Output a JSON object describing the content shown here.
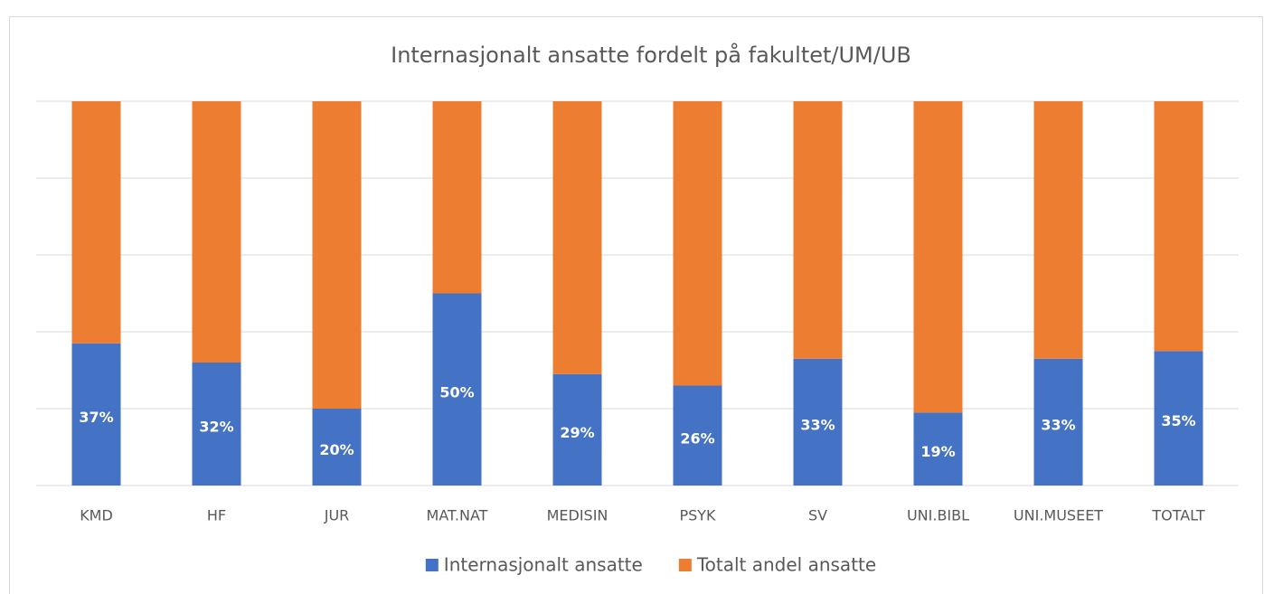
{
  "chart_data": {
    "type": "stacked_bar",
    "title": "Internasjonalt ansatte fordelt på fakultet/UM/UB",
    "categories": [
      "KMD",
      "HF",
      "JUR",
      "MAT.NAT",
      "MEDISIN",
      "PSYK",
      "SV",
      "UNI.BIBL",
      "UNI.MUSEET",
      "TOTALT"
    ],
    "series": [
      {
        "name": "Internasjonalt ansatte",
        "color": "#4472c4",
        "values": [
          37,
          32,
          20,
          50,
          29,
          26,
          33,
          19,
          33,
          35
        ],
        "value_labels": [
          "37%",
          "32%",
          "20%",
          "50%",
          "29%",
          "26%",
          "33%",
          "19%",
          "33%",
          "35%"
        ]
      },
      {
        "name": "Totalt andel ansatte",
        "color": "#ed7d31",
        "values": [
          63,
          68,
          80,
          50,
          71,
          74,
          67,
          81,
          67,
          65
        ]
      }
    ],
    "ylim": [
      0,
      100
    ],
    "yticks": [
      0,
      20,
      40,
      60,
      80,
      100
    ],
    "grid": true,
    "legend": "bottom"
  }
}
